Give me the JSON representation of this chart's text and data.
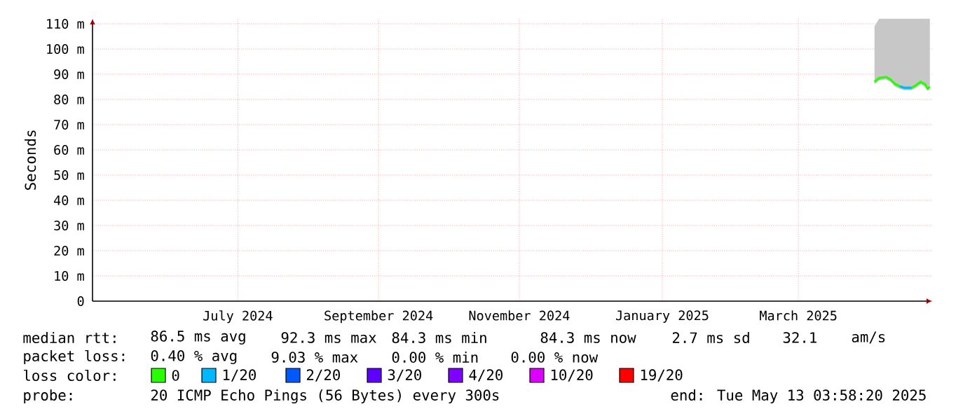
{
  "chart_data": {
    "type": "line",
    "ylabel": "Seconds",
    "x": [
      "2025-04-18",
      "2025-04-20",
      "2025-04-23",
      "2025-04-25",
      "2025-04-27",
      "2025-04-29",
      "2025-05-01",
      "2025-05-04",
      "2025-05-06",
      "2025-05-08",
      "2025-05-10",
      "2025-05-11",
      "2025-05-12"
    ],
    "series": [
      {
        "name": "0",
        "color": "#26ff00",
        "values": [
          87,
          88.5,
          88.9,
          87.9,
          86.1,
          85.2,
          84.6,
          84.6,
          85.6,
          87,
          86,
          84.3,
          85
        ],
        "lower": [
          86,
          87.5,
          87.9,
          86.9,
          85.1,
          84.2,
          83.6,
          83.6,
          84.6,
          86,
          85,
          83.3,
          84
        ],
        "upper": [
          109,
          112,
          112,
          112,
          112,
          112,
          112,
          112,
          112,
          112,
          112,
          112,
          112
        ]
      },
      {
        "name": "1/20",
        "color": "#00b8ff",
        "values": [
          null,
          null,
          null,
          null,
          null,
          85.2,
          84.6,
          84.6,
          null,
          null,
          null,
          null,
          null
        ]
      },
      {
        "name": "2/20",
        "color": "#0059ff",
        "values": [
          null,
          null,
          null,
          null,
          null,
          null,
          null,
          null,
          null,
          null,
          null,
          null,
          null
        ]
      },
      {
        "name": "3/20",
        "color": "#5e00ff",
        "values": [
          null,
          null,
          null,
          null,
          null,
          null,
          null,
          null,
          null,
          null,
          null,
          null,
          null
        ]
      },
      {
        "name": "4/20",
        "color": "#7e00ff",
        "values": [
          null,
          null,
          null,
          null,
          null,
          null,
          null,
          null,
          null,
          null,
          null,
          null,
          null
        ]
      },
      {
        "name": "10/20",
        "color": "#dd00ff",
        "values": [
          null,
          null,
          null,
          null,
          null,
          null,
          null,
          null,
          null,
          null,
          null,
          null,
          null
        ]
      },
      {
        "name": "19/20",
        "color": "#ff0000",
        "values": [
          null,
          null,
          null,
          null,
          null,
          null,
          null,
          null,
          null,
          null,
          null,
          null,
          null
        ]
      }
    ],
    "legend_title": "loss color:",
    "legend": "bottom",
    "xlim": [
      "2024-05-14",
      "2025-05-13"
    ],
    "xticks": [
      {
        "value": "2024-07-16",
        "label": "July 2024"
      },
      {
        "value": "2024-09-15",
        "label": "September 2024"
      },
      {
        "value": "2024-11-15",
        "label": "November 2024"
      },
      {
        "value": "2025-01-16",
        "label": "January 2025"
      },
      {
        "value": "2025-03-16",
        "label": "March 2025"
      }
    ],
    "ylim": [
      0,
      112
    ],
    "yticks": [
      0,
      {
        "value": 10,
        "label": "10 m"
      },
      {
        "value": 20,
        "label": "20 m"
      },
      {
        "value": 30,
        "label": "30 m"
      },
      {
        "value": 40,
        "label": "40 m"
      },
      {
        "value": 50,
        "label": "50 m"
      },
      {
        "value": 60,
        "label": "60 m"
      },
      {
        "value": 70,
        "label": "70 m"
      },
      {
        "value": 80,
        "label": "80 m"
      },
      {
        "value": 90,
        "label": "90 m"
      },
      {
        "value": 100,
        "label": "100 m"
      },
      {
        "value": 110,
        "label": "110 m"
      }
    ],
    "grid": true,
    "annotations": [
      "median rtt:",
      "86.5 ms avg",
      "92.3 ms max",
      "84.3 ms min",
      "84.3 ms now",
      "2.7 ms sd",
      "32.1",
      "am/s",
      "packet loss:",
      "0.40 % avg",
      "9.03 % max",
      "0.00 % min",
      "0.00 % now",
      "probe:",
      "20 ICMP Echo Pings (56 Bytes) every 300s",
      "end: Tue May 13 03:58:20 2025"
    ]
  }
}
